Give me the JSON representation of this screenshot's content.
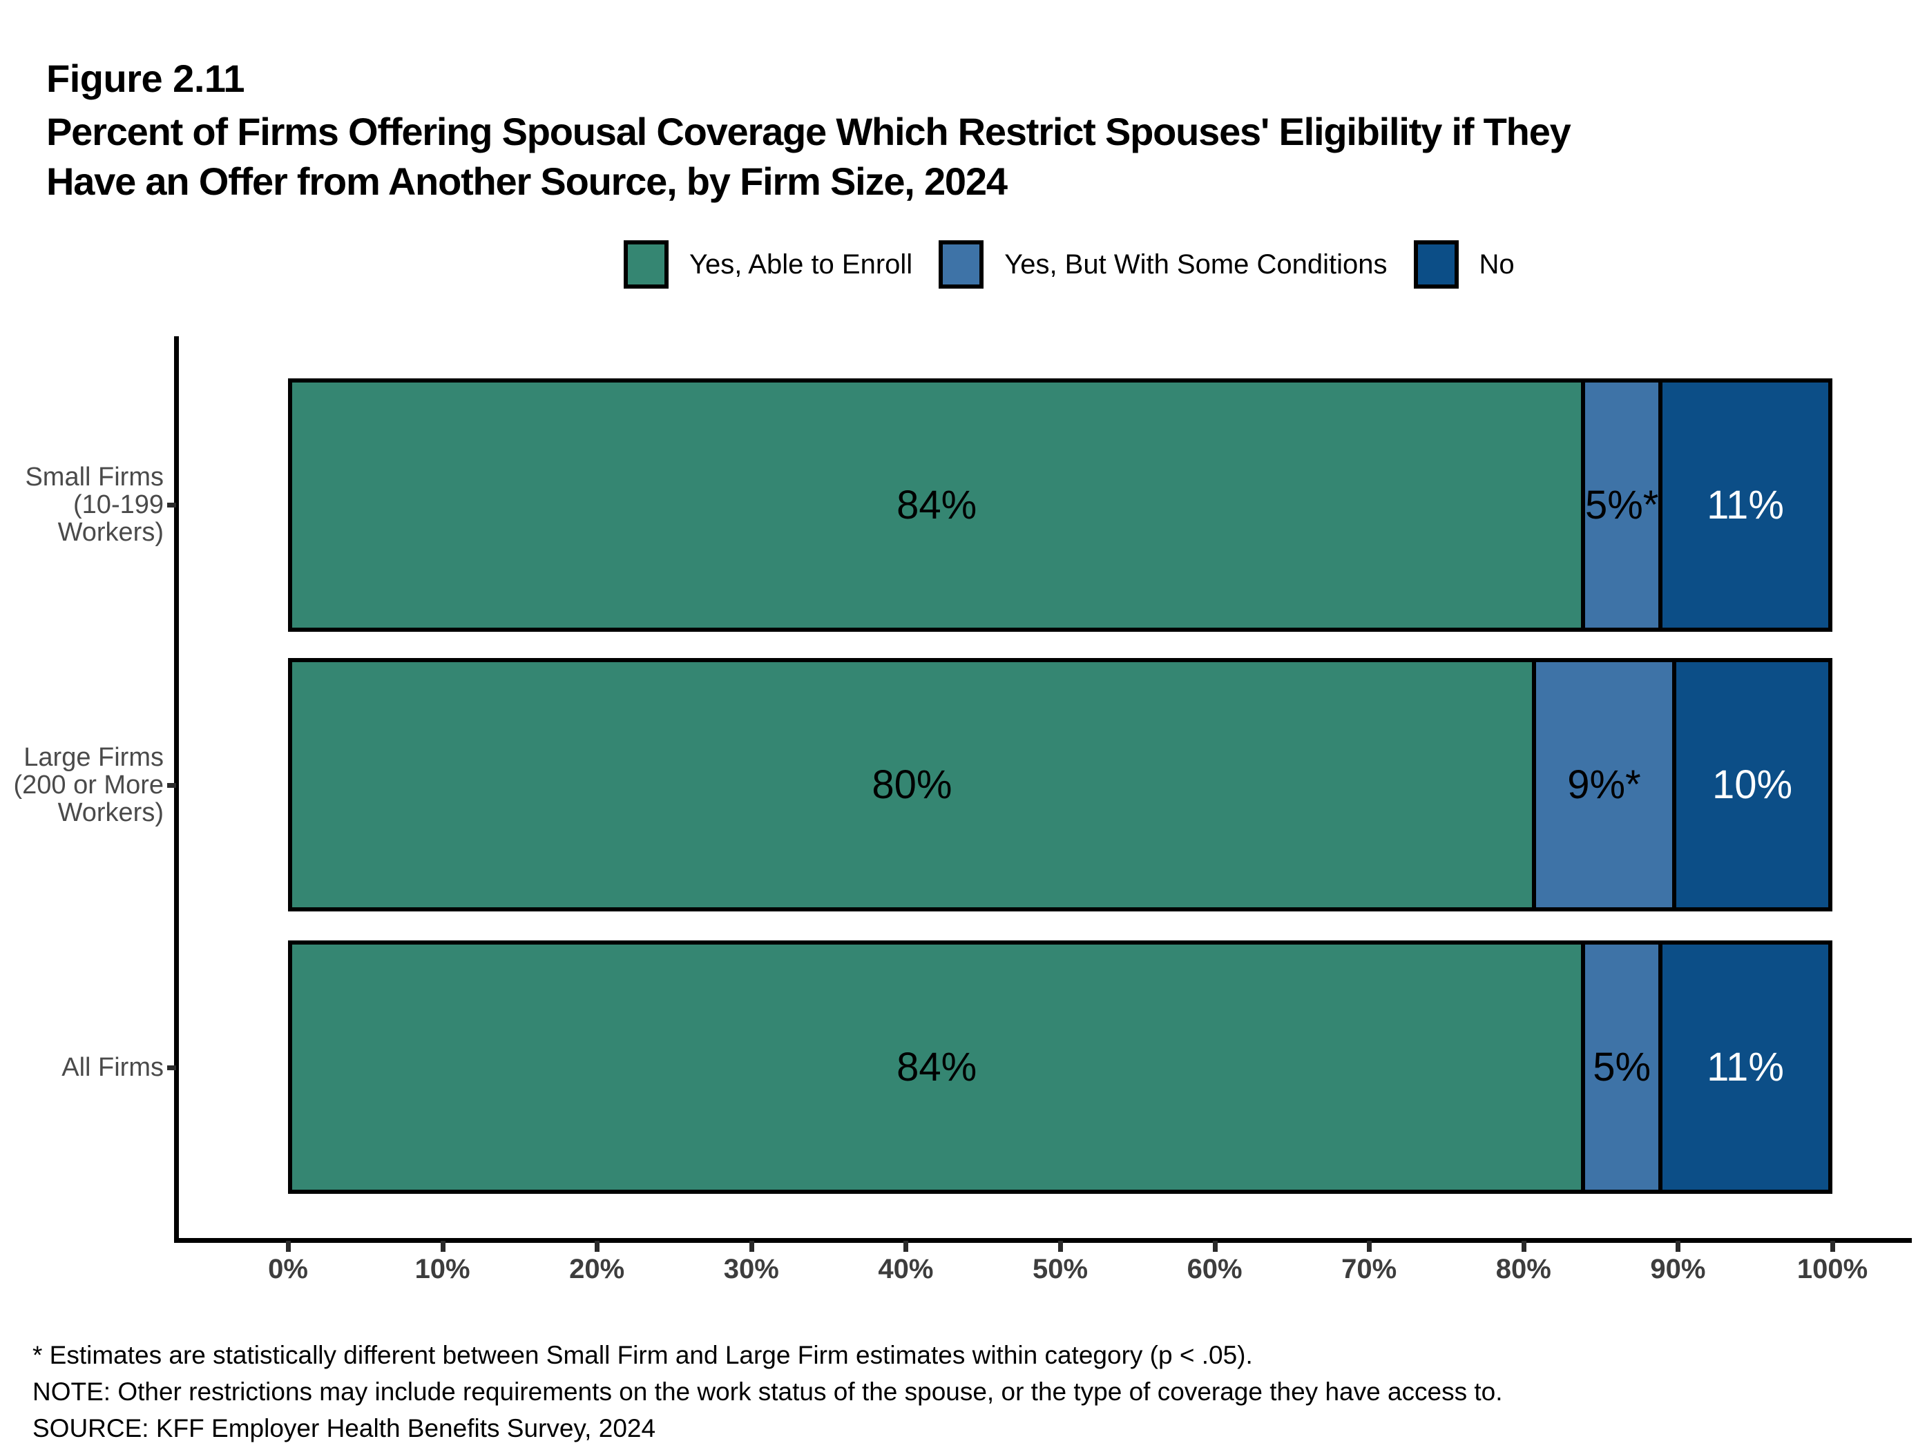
{
  "header": {
    "figure_label": "Figure 2.11",
    "title": "Percent of Firms Offering Spousal Coverage Which Restrict Spouses' Eligibility if They\nHave an Offer from Another Source, by Firm Size, 2024"
  },
  "legend": {
    "items": [
      {
        "label": "Yes, Able to Enroll",
        "color": "#358672"
      },
      {
        "label": "Yes, But With Some Conditions",
        "color": "#3E73A7"
      },
      {
        "label": "No",
        "color": "#0C4E87"
      }
    ]
  },
  "chart_data": {
    "type": "bar",
    "orientation": "horizontal",
    "stacked": true,
    "title": "Percent of Firms Offering Spousal Coverage Which Restrict Spouses' Eligibility if They Have an Offer from Another Source, by Firm Size, 2024",
    "x_axis": {
      "ticks": [
        "0%",
        "10%",
        "20%",
        "30%",
        "40%",
        "50%",
        "60%",
        "70%",
        "80%",
        "90%",
        "100%"
      ],
      "range": [
        0,
        100
      ]
    },
    "categories": [
      "Small Firms\n(10-199\nWorkers)",
      "Large Firms\n(200 or More\nWorkers)",
      "All Firms"
    ],
    "series": [
      {
        "name": "Yes, Able to Enroll",
        "color": "#358672",
        "label_color": "#000000",
        "values": [
          84,
          80,
          84
        ]
      },
      {
        "name": "Yes, But With Some Conditions",
        "color": "#3E73A7",
        "label_color": "#000000",
        "values": [
          5,
          9,
          5
        ]
      },
      {
        "name": "No",
        "color": "#0C4E87",
        "label_color": "#FFFFFF",
        "values": [
          11,
          10,
          11
        ]
      }
    ],
    "rows": [
      {
        "category": "Small Firms\n(10-199\nWorkers)",
        "segments": [
          {
            "label": "84%",
            "value": 84
          },
          {
            "label": "5%*",
            "value": 5
          },
          {
            "label": "11%",
            "value": 11
          }
        ]
      },
      {
        "category": "Large Firms\n(200 or More\nWorkers)",
        "segments": [
          {
            "label": "80%",
            "value": 80
          },
          {
            "label": "9%*",
            "value": 9
          },
          {
            "label": "10%",
            "value": 10
          }
        ]
      },
      {
        "category": "All Firms",
        "segments": [
          {
            "label": "84%",
            "value": 84
          },
          {
            "label": "5%",
            "value": 5
          },
          {
            "label": "11%",
            "value": 11
          }
        ]
      }
    ],
    "legend_position": "top",
    "grid": false
  },
  "footnotes": {
    "asterisk": "* Estimates are statistically different between Small Firm and Large Firm estimates within category (p < .05).",
    "note": "NOTE: Other restrictions may include requirements on the work status of the spouse, or the type of coverage they have access to.",
    "source": "SOURCE: KFF Employer Health Benefits Survey, 2024"
  }
}
